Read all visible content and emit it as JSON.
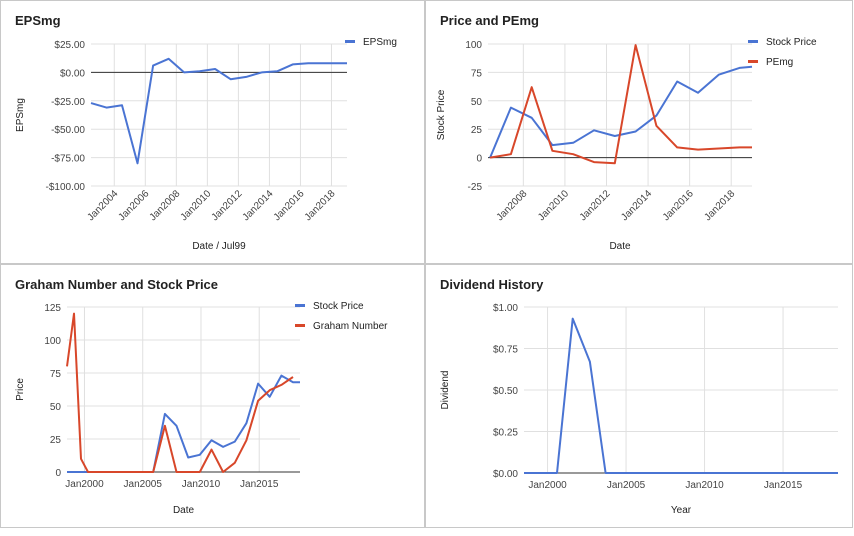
{
  "chart_data": [
    {
      "type": "line",
      "title": "EPSmg",
      "xlabel": "Date / Jul99",
      "ylabel": "EPSmg",
      "ylim": [
        -100,
        25
      ],
      "xlim": [
        2002.5,
        2019
      ],
      "y_ticks": [
        25,
        0,
        -25,
        -50,
        -75,
        -100
      ],
      "y_tick_labels": [
        "$25.00",
        "$0.00",
        "-$25.00",
        "-$50.00",
        "-$75.00",
        "-$100.00"
      ],
      "x_ticks": [
        2004,
        2006,
        2008,
        2010,
        2012,
        2014,
        2016,
        2018
      ],
      "x_tick_labels": [
        "Jan2004",
        "Jan2006",
        "Jan2008",
        "Jan2010",
        "Jan2012",
        "Jan2014",
        "Jan2016",
        "Jan2018"
      ],
      "grid": true,
      "legend": "top-right",
      "series": [
        {
          "name": "EPSmg",
          "color": "#4a74d3",
          "x": [
            2002.5,
            2003.5,
            2004.5,
            2005.5,
            2006.5,
            2007.5,
            2008.5,
            2009.5,
            2010.5,
            2011.5,
            2012.5,
            2013.5,
            2014.5,
            2015.5,
            2016.5,
            2017.5,
            2018.5,
            2019
          ],
          "values": [
            -27,
            -31,
            -29,
            -80,
            6,
            12,
            0,
            1,
            3,
            -6,
            -4,
            0,
            1,
            7,
            8,
            8,
            8,
            8
          ]
        }
      ]
    },
    {
      "type": "line",
      "title": "Price and PEmg",
      "xlabel": "Date",
      "ylabel": "Stock Price",
      "ylim": [
        -25,
        100
      ],
      "xlim": [
        2006.3,
        2019
      ],
      "y_ticks": [
        100,
        75,
        50,
        25,
        0,
        -25
      ],
      "y_tick_labels": [
        "100",
        "75",
        "50",
        "25",
        "0",
        "-25"
      ],
      "x_ticks": [
        2008,
        2010,
        2012,
        2014,
        2016,
        2018
      ],
      "x_tick_labels": [
        "Jan2008",
        "Jan2010",
        "Jan2012",
        "Jan2014",
        "Jan2016",
        "Jan2018"
      ],
      "grid": true,
      "legend": "top-right",
      "series": [
        {
          "name": "Stock Price",
          "color": "#4a74d3",
          "x": [
            2006.4,
            2007.4,
            2008.4,
            2009.4,
            2010.4,
            2011.4,
            2012.4,
            2013.4,
            2014.4,
            2015.4,
            2016.4,
            2017.4,
            2018.4,
            2019
          ],
          "values": [
            0,
            44,
            35,
            11,
            13,
            24,
            19,
            23,
            37,
            67,
            57,
            73,
            79,
            80
          ]
        },
        {
          "name": "PEmg",
          "color": "#d8472a",
          "x": [
            2006.4,
            2007.4,
            2008.4,
            2009.4,
            2010.4,
            2011.4,
            2012.4,
            2013.4,
            2014.4,
            2015.4,
            2016.4,
            2017.4,
            2018.4,
            2019
          ],
          "values": [
            0,
            3,
            62,
            6,
            3,
            -4,
            -5,
            99,
            28,
            9,
            7,
            8,
            9,
            9
          ]
        }
      ]
    },
    {
      "type": "line",
      "title": "Graham Number and Stock Price",
      "xlabel": "Date",
      "ylabel": "Price",
      "ylim": [
        0,
        125
      ],
      "xlim": [
        1998.5,
        2018.5
      ],
      "y_ticks": [
        125,
        100,
        75,
        50,
        25,
        0
      ],
      "y_tick_labels": [
        "125",
        "100",
        "75",
        "50",
        "25",
        "0"
      ],
      "x_ticks": [
        2000,
        2005,
        2010,
        2015
      ],
      "x_tick_labels": [
        "Jan2000",
        "Jan2005",
        "Jan2010",
        "Jan2015"
      ],
      "grid": true,
      "legend": "top-right",
      "series": [
        {
          "name": "Stock Price",
          "color": "#4a74d3",
          "x": [
            1998.5,
            2005.9,
            2006.9,
            2007.9,
            2008.9,
            2009.9,
            2010.9,
            2011.9,
            2012.9,
            2013.9,
            2014.9,
            2015.9,
            2016.9,
            2017.9,
            2018.5
          ],
          "values": [
            0,
            0,
            44,
            35,
            11,
            13,
            24,
            19,
            23,
            37,
            67,
            57,
            73,
            68,
            68
          ]
        },
        {
          "name": "Graham Number",
          "color": "#d8472a",
          "x": [
            1998.5,
            1999.1,
            1999.7,
            2000.3,
            2001.3,
            2002.3,
            2003.3,
            2004.3,
            2005.3,
            2005.9,
            2006.9,
            2007.9,
            2008.9,
            2009.9,
            2010.9,
            2011.9,
            2012.9,
            2013.9,
            2014.9,
            2015.9,
            2016.9,
            2017.9
          ],
          "values": [
            80,
            120,
            10,
            0,
            0,
            0,
            0,
            0,
            0,
            0,
            35,
            0,
            0,
            0,
            17,
            0,
            7,
            24,
            54,
            62,
            66,
            72
          ]
        }
      ]
    },
    {
      "type": "line",
      "title": "Dividend History",
      "xlabel": "Year",
      "ylabel": "Dividend",
      "ylim": [
        0,
        1
      ],
      "xlim": [
        1998.5,
        2018.5
      ],
      "y_ticks": [
        1,
        0.75,
        0.5,
        0.25,
        0
      ],
      "y_tick_labels": [
        "$1.00",
        "$0.75",
        "$0.50",
        "$0.25",
        "$0.00"
      ],
      "x_ticks": [
        2000,
        2005,
        2010,
        2015
      ],
      "x_tick_labels": [
        "Jan2000",
        "Jan2005",
        "Jan2010",
        "Jan2015"
      ],
      "grid": true,
      "legend": "none",
      "series": [
        {
          "name": "",
          "color": "#4a74d3",
          "x": [
            1998.5,
            2000.6,
            2001.6,
            2002.7,
            2003.7,
            2018.5
          ],
          "values": [
            0,
            0,
            0.93,
            0.67,
            0,
            0
          ]
        }
      ]
    }
  ]
}
